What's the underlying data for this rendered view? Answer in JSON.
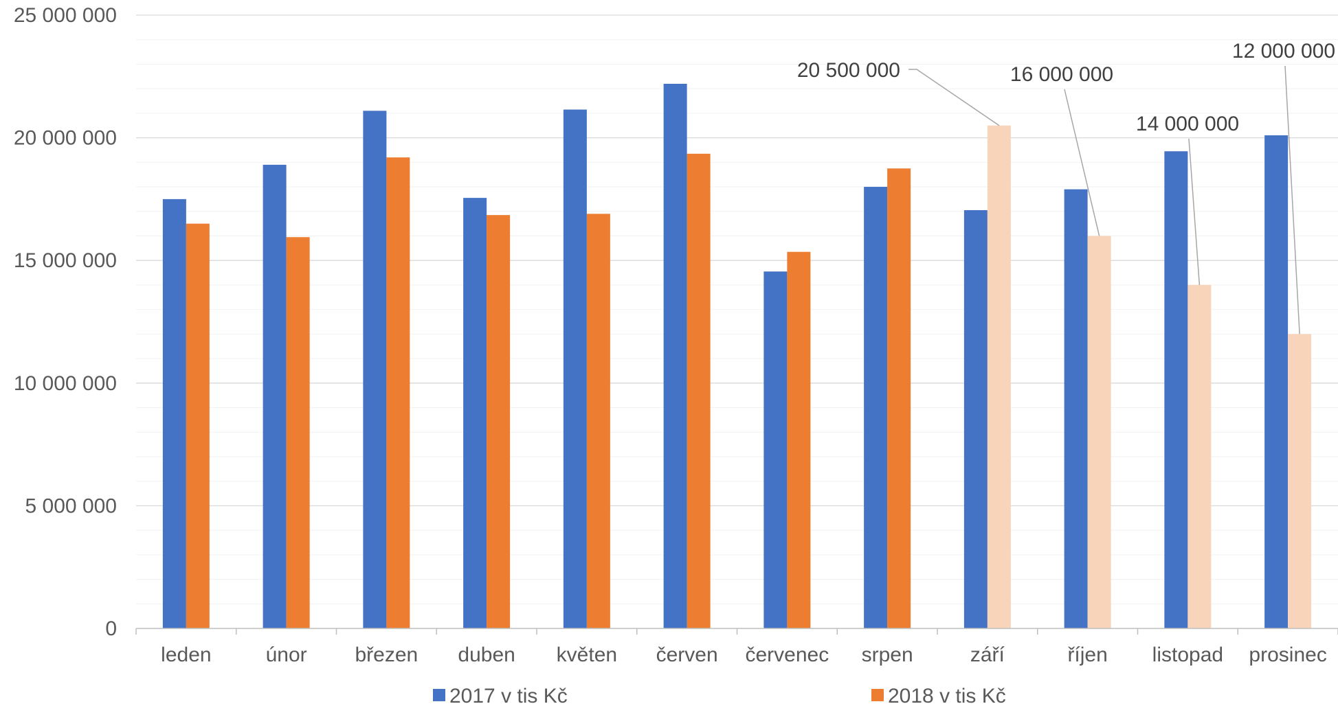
{
  "chart_data": {
    "type": "bar",
    "title": "",
    "xlabel": "",
    "ylabel": "",
    "ylim": [
      0,
      25000000
    ],
    "y_major_ticks": [
      0,
      5000000,
      10000000,
      15000000,
      20000000,
      25000000
    ],
    "y_tick_labels": [
      "0",
      "5 000 000",
      "10 000 000",
      "15 000 000",
      "20 000 000",
      "25 000 000"
    ],
    "grid": true,
    "legend_position": "bottom",
    "categories": [
      "leden",
      "únor",
      "březen",
      "duben",
      "květen",
      "červen",
      "červenec",
      "srpen",
      "září",
      "říjen",
      "listopad",
      "prosinec"
    ],
    "series": [
      {
        "name": "2017 v tis Kč",
        "color": "#4472C4",
        "values": [
          17500000,
          18900000,
          21100000,
          17550000,
          21150000,
          22200000,
          14550000,
          18000000,
          17050000,
          17900000,
          19450000,
          20100000
        ]
      },
      {
        "name": "2018 v tis Kč",
        "color": "#ED7D31",
        "projected_color": "#F8D5BA",
        "projected_from_index": 8,
        "values": [
          16500000,
          15950000,
          19200000,
          16850000,
          16900000,
          19350000,
          15350000,
          18750000,
          20500000,
          16000000,
          14000000,
          12000000
        ]
      }
    ],
    "annotations": [
      {
        "category": "září",
        "value": 20500000,
        "label": "20 500 000"
      },
      {
        "category": "říjen",
        "value": 16000000,
        "label": "16 000 000"
      },
      {
        "category": "listopad",
        "value": 14000000,
        "label": "14 000 000"
      },
      {
        "category": "prosinec",
        "value": 12000000,
        "label": "12 000 000"
      }
    ]
  }
}
